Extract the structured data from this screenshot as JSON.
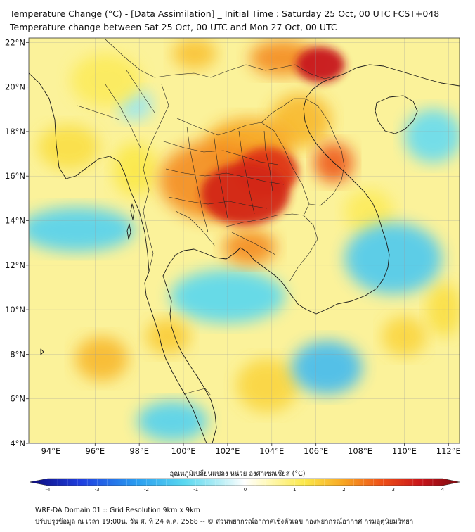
{
  "header": {
    "title_line1": "Temperature Change (°C) - [Data Assimilation] _ Initial Time : Saturday 25 Oct, 00 UTC FCST+048",
    "title_line2": "Temperature change between Sat 25 Oct, 00 UTC and Mon 27 Oct, 00 UTC"
  },
  "map": {
    "lon_range": [
      93,
      112.5
    ],
    "lat_range": [
      4,
      22.2
    ],
    "lon_ticks": [
      {
        "value": 94,
        "label": "94°E"
      },
      {
        "value": 96,
        "label": "96°E"
      },
      {
        "value": 98,
        "label": "98°E"
      },
      {
        "value": 100,
        "label": "100°E"
      },
      {
        "value": 102,
        "label": "102°E"
      },
      {
        "value": 104,
        "label": "104°E"
      },
      {
        "value": 106,
        "label": "106°E"
      },
      {
        "value": 108,
        "label": "108°E"
      },
      {
        "value": 110,
        "label": "110°E"
      },
      {
        "value": 112,
        "label": "112°E"
      }
    ],
    "lat_ticks": [
      {
        "value": 4,
        "label": "4°N"
      },
      {
        "value": 6,
        "label": "6°N"
      },
      {
        "value": 8,
        "label": "8°N"
      },
      {
        "value": 10,
        "label": "10°N"
      },
      {
        "value": 12,
        "label": "12°N"
      },
      {
        "value": 14,
        "label": "14°N"
      },
      {
        "value": 16,
        "label": "16°N"
      },
      {
        "value": 18,
        "label": "18°N"
      },
      {
        "value": 20,
        "label": "20°N"
      },
      {
        "value": 22,
        "label": "22°N"
      }
    ],
    "grid": true,
    "field_blobs": [
      {
        "lon": 102.8,
        "lat": 15.2,
        "rx": 2.0,
        "ry": 1.4,
        "value": 3.0
      },
      {
        "lon": 103.8,
        "lat": 16.2,
        "rx": 1.4,
        "ry": 1.1,
        "value": 2.8
      },
      {
        "lon": 101.5,
        "lat": 15.8,
        "rx": 2.6,
        "ry": 1.8,
        "value": 2.0
      },
      {
        "lon": 103.0,
        "lat": 17.4,
        "rx": 2.0,
        "ry": 1.2,
        "value": 1.8
      },
      {
        "lon": 103.0,
        "lat": 12.8,
        "rx": 1.2,
        "ry": 0.8,
        "value": 2.0
      },
      {
        "lon": 106.2,
        "lat": 21.0,
        "rx": 1.1,
        "ry": 0.8,
        "value": 3.2
      },
      {
        "lon": 104.5,
        "lat": 21.3,
        "rx": 1.5,
        "ry": 0.8,
        "value": 2.0
      },
      {
        "lon": 106.8,
        "lat": 16.6,
        "rx": 0.9,
        "ry": 0.9,
        "value": 2.4
      },
      {
        "lon": 105.3,
        "lat": 18.5,
        "rx": 1.4,
        "ry": 1.2,
        "value": 1.6
      },
      {
        "lon": 100.5,
        "lat": 21.5,
        "rx": 1.0,
        "ry": 0.7,
        "value": 1.5
      },
      {
        "lon": 97.8,
        "lat": 16.3,
        "rx": 1.0,
        "ry": 1.2,
        "value": 1.1
      },
      {
        "lon": 94.8,
        "lat": 17.3,
        "rx": 1.4,
        "ry": 1.0,
        "value": 1.2
      },
      {
        "lon": 96.5,
        "lat": 20.3,
        "rx": 1.6,
        "ry": 1.2,
        "value": 1.0
      },
      {
        "lon": 96.3,
        "lat": 7.8,
        "rx": 1.2,
        "ry": 1.0,
        "value": 1.6
      },
      {
        "lon": 99.3,
        "lat": 8.8,
        "rx": 1.0,
        "ry": 0.8,
        "value": 1.4
      },
      {
        "lon": 103.8,
        "lat": 6.6,
        "rx": 1.4,
        "ry": 1.2,
        "value": 1.3
      },
      {
        "lon": 110.0,
        "lat": 8.8,
        "rx": 1.0,
        "ry": 0.9,
        "value": 1.3
      },
      {
        "lon": 108.4,
        "lat": 14.4,
        "rx": 1.1,
        "ry": 1.0,
        "value": 1.0
      },
      {
        "lon": 111.8,
        "lat": 10.0,
        "rx": 0.8,
        "ry": 1.2,
        "value": 1.2
      },
      {
        "lon": 95.2,
        "lat": 13.6,
        "rx": 2.6,
        "ry": 1.0,
        "value": -1.3
      },
      {
        "lon": 102.0,
        "lat": 10.6,
        "rx": 2.6,
        "ry": 1.2,
        "value": -1.2
      },
      {
        "lon": 109.5,
        "lat": 12.3,
        "rx": 2.2,
        "ry": 1.6,
        "value": -1.4
      },
      {
        "lon": 106.5,
        "lat": 7.4,
        "rx": 1.6,
        "ry": 1.2,
        "value": -1.6
      },
      {
        "lon": 99.5,
        "lat": 5.0,
        "rx": 1.6,
        "ry": 0.9,
        "value": -1.3
      },
      {
        "lon": 111.3,
        "lat": 17.8,
        "rx": 1.3,
        "ry": 1.2,
        "value": -1.1
      },
      {
        "lon": 97.8,
        "lat": 19.2,
        "rx": 0.8,
        "ry": 0.7,
        "value": -0.7
      }
    ]
  },
  "colorbar": {
    "title": "อุณหภูมิเปลี่ยนแปลง หน่วย องศาเซลเซียส (°C)",
    "min": -4,
    "max": 4,
    "ticks": [
      {
        "value": -4,
        "label": "-4"
      },
      {
        "value": -3,
        "label": "-3"
      },
      {
        "value": -2,
        "label": "-2"
      },
      {
        "value": -1,
        "label": "-1"
      },
      {
        "value": 0,
        "label": "0"
      },
      {
        "value": 1,
        "label": "1"
      },
      {
        "value": 2,
        "label": "2"
      },
      {
        "value": 3,
        "label": "3"
      },
      {
        "value": 4,
        "label": "4"
      }
    ]
  },
  "footer": {
    "line1": "WRF-DA Domain 01 :: Grid Resolution 9km x 9km",
    "line2": "ปรับปรุงข้อมูล ณ เวลา 19:00น. วัน ศ. ที่ 24 ต.ค. 2568 -- © ส่วนพยากรณ์อากาศเชิงตัวเลข กองพยากรณ์อากาศ กรมอุตุนิยมวิทยา"
  }
}
